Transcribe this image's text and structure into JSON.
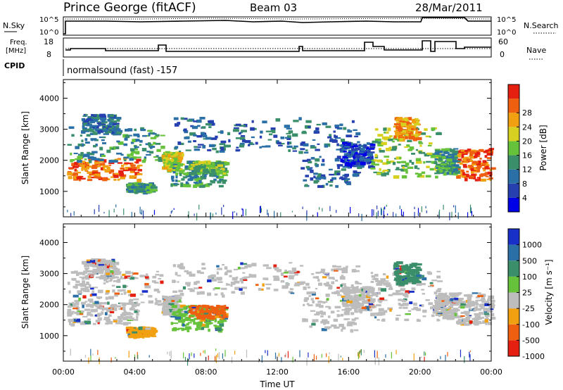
{
  "header": {
    "station": "Prince George (fitACF)",
    "beam": "Beam 03",
    "date": "28/Mar/2011"
  },
  "noise_panel": {
    "left_label": "N.Sky",
    "right_label": "N.Search",
    "left_ticks": [
      "10^5",
      "10^0"
    ],
    "right_ticks": [
      "10^5",
      "10^0"
    ]
  },
  "freq_panel": {
    "left_label_1": "Freq.",
    "left_label_2": "[MHz]",
    "right_label": "Nave",
    "left_ticks": [
      "18",
      "8"
    ],
    "right_ticks": [
      "60",
      "0"
    ]
  },
  "cpid": {
    "label": "CPID",
    "value": "normalsound (fast) -157"
  },
  "chart_data": [
    {
      "type": "heatmap",
      "quantity": "Power",
      "ylabel": "Slant Range [km]",
      "ylim": [
        180,
        4600
      ],
      "yticks": [
        "1000",
        "2000",
        "3000",
        "4000"
      ],
      "colorbar": {
        "label": "Power [dB]",
        "ticks": [
          "4",
          "8",
          "12",
          "16",
          "20",
          "24",
          "28"
        ],
        "colors": [
          "#0000e6",
          "#2640b0",
          "#2a6fa6",
          "#3a8f6a",
          "#66c23a",
          "#d8d020",
          "#f0a010",
          "#ee6010",
          "#e62010"
        ]
      }
    },
    {
      "type": "heatmap",
      "quantity": "Velocity",
      "ylabel": "Slant Range [km]",
      "ylim": [
        180,
        4600
      ],
      "yticks": [
        "1000",
        "2000",
        "3000",
        "4000"
      ],
      "colorbar": {
        "label": "Velocity [m s⁻¹]",
        "ticks": [
          "1000",
          "500",
          "100",
          "25",
          "-25",
          "-100",
          "-500",
          "-1000"
        ],
        "colors": [
          "#1830c8",
          "#2a6fa6",
          "#3a8f6a",
          "#66c23a",
          "#bdbdbd",
          "#f0a010",
          "#ee6010",
          "#e62010"
        ]
      }
    }
  ],
  "time_axis": {
    "label": "Time UT",
    "ticks": [
      "00:00",
      "04:00",
      "08:00",
      "12:00",
      "16:00",
      "20:00",
      "00:00"
    ],
    "range_hours": [
      0,
      24
    ]
  }
}
